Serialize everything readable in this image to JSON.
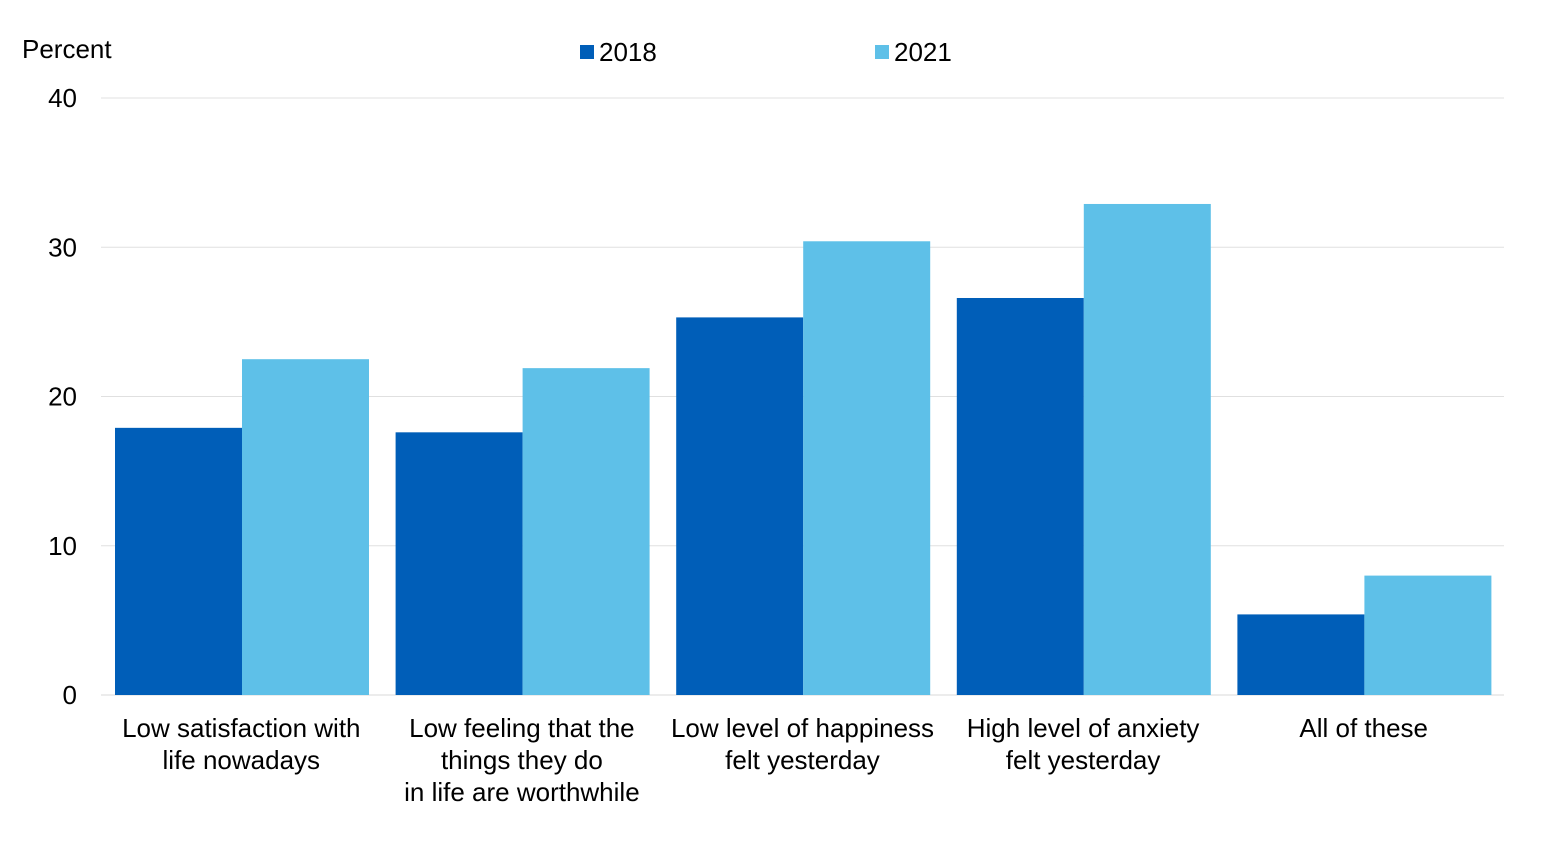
{
  "chart_data": {
    "type": "bar",
    "ylabel": "Percent",
    "xlabel": "",
    "ylim": [
      0,
      40
    ],
    "yticks": [
      0,
      10,
      20,
      30,
      40
    ],
    "grid": true,
    "legend_position": "top-center",
    "categories": [
      [
        "Low satisfaction with",
        "life nowadays"
      ],
      [
        "Low feeling that the",
        "things they do",
        "in life are worthwhile"
      ],
      [
        "Low level of happiness",
        "felt yesterday"
      ],
      [
        "High level of anxiety",
        "felt yesterday"
      ],
      [
        "All of these"
      ]
    ],
    "series": [
      {
        "name": "2018",
        "color": "#005eb8",
        "values": [
          17.9,
          17.6,
          25.3,
          26.6,
          5.4
        ]
      },
      {
        "name": "2021",
        "color": "#5ec0e8",
        "values": [
          22.5,
          21.9,
          30.4,
          32.9,
          8.0
        ]
      }
    ]
  }
}
